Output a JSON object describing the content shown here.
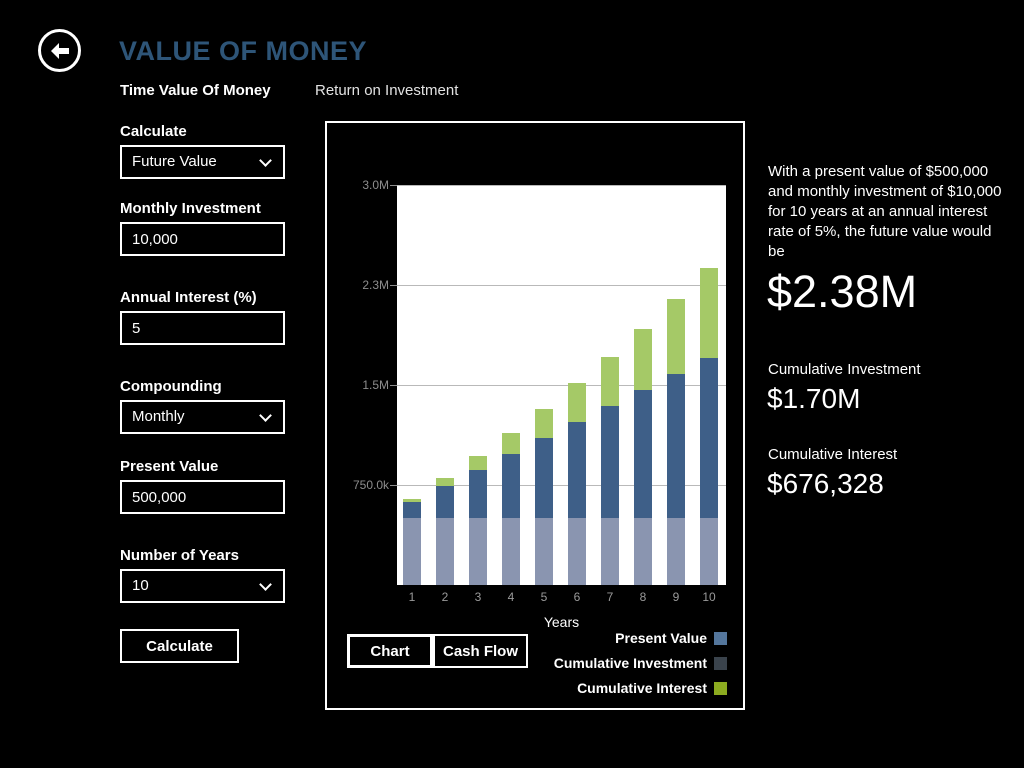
{
  "header": {
    "title": "VALUE OF MONEY"
  },
  "tabs": [
    {
      "label": "Time Value Of Money",
      "active": true
    },
    {
      "label": "Return on Investment",
      "active": false
    }
  ],
  "form": {
    "calculate": {
      "label": "Calculate",
      "value": "Future Value"
    },
    "monthly_investment": {
      "label": "Monthly Investment",
      "value": "10,000"
    },
    "annual_interest": {
      "label": "Annual Interest (%)",
      "value": "5"
    },
    "compounding": {
      "label": "Compounding",
      "value": "Monthly"
    },
    "present_value": {
      "label": "Present Value",
      "value": "500,000"
    },
    "number_of_years": {
      "label": "Number of Years",
      "value": "10"
    },
    "calculate_button": "Calculate"
  },
  "chart_toolbar": {
    "chart_button": "Chart",
    "cashflow_button": "Cash Flow",
    "selected": "Chart"
  },
  "chart_data": {
    "type": "bar",
    "stacked": true,
    "categories": [
      "1",
      "2",
      "3",
      "4",
      "5",
      "6",
      "7",
      "8",
      "9",
      "10"
    ],
    "series": [
      {
        "name": "Present Value",
        "color": "#8a95b0",
        "values": [
          500000,
          500000,
          500000,
          500000,
          500000,
          500000,
          500000,
          500000,
          500000,
          500000
        ]
      },
      {
        "name": "Cumulative Investment",
        "color": "#3e5f88",
        "values": [
          120000,
          240000,
          360000,
          480000,
          600000,
          720000,
          840000,
          960000,
          1080000,
          1200000
        ]
      },
      {
        "name": "Cumulative Interest",
        "color": "#a5c967",
        "values": [
          28370,
          64335,
          108274,
          160593,
          221742,
          292154,
          372311,
          462702,
          563839,
          676328
        ]
      }
    ],
    "totals": [
      648370,
      804335,
      968274,
      1140593,
      1321742,
      1512154,
      1712311,
      1922702,
      2143839,
      2376328
    ],
    "xlabel": "Years",
    "ylabel": "",
    "ylim": [
      0,
      3000000
    ],
    "y_ticks": [
      {
        "value": 750000,
        "label": "750.0k"
      },
      {
        "value": 1500000,
        "label": "1.5M"
      },
      {
        "value": 2250000,
        "label": "2.3M"
      },
      {
        "value": 3000000,
        "label": "3.0M"
      }
    ],
    "grid": true,
    "legend_position": "bottom-right",
    "legend": [
      {
        "label": "Present Value",
        "swatch": "#54769c"
      },
      {
        "label": "Cumulative Investment",
        "swatch": "#3a434c"
      },
      {
        "label": "Cumulative Interest",
        "swatch": "#8cab20"
      }
    ]
  },
  "result": {
    "summary": "With a present value of $500,000 and monthly investment of $10,000 for 10 years at an annual interest rate of 5%, the future value would be",
    "future_value": "$2.38M",
    "cumulative_investment_label": "Cumulative Investment",
    "cumulative_investment_value": "$1.70M",
    "cumulative_interest_label": "Cumulative Interest",
    "cumulative_interest_value": "$676,328"
  }
}
